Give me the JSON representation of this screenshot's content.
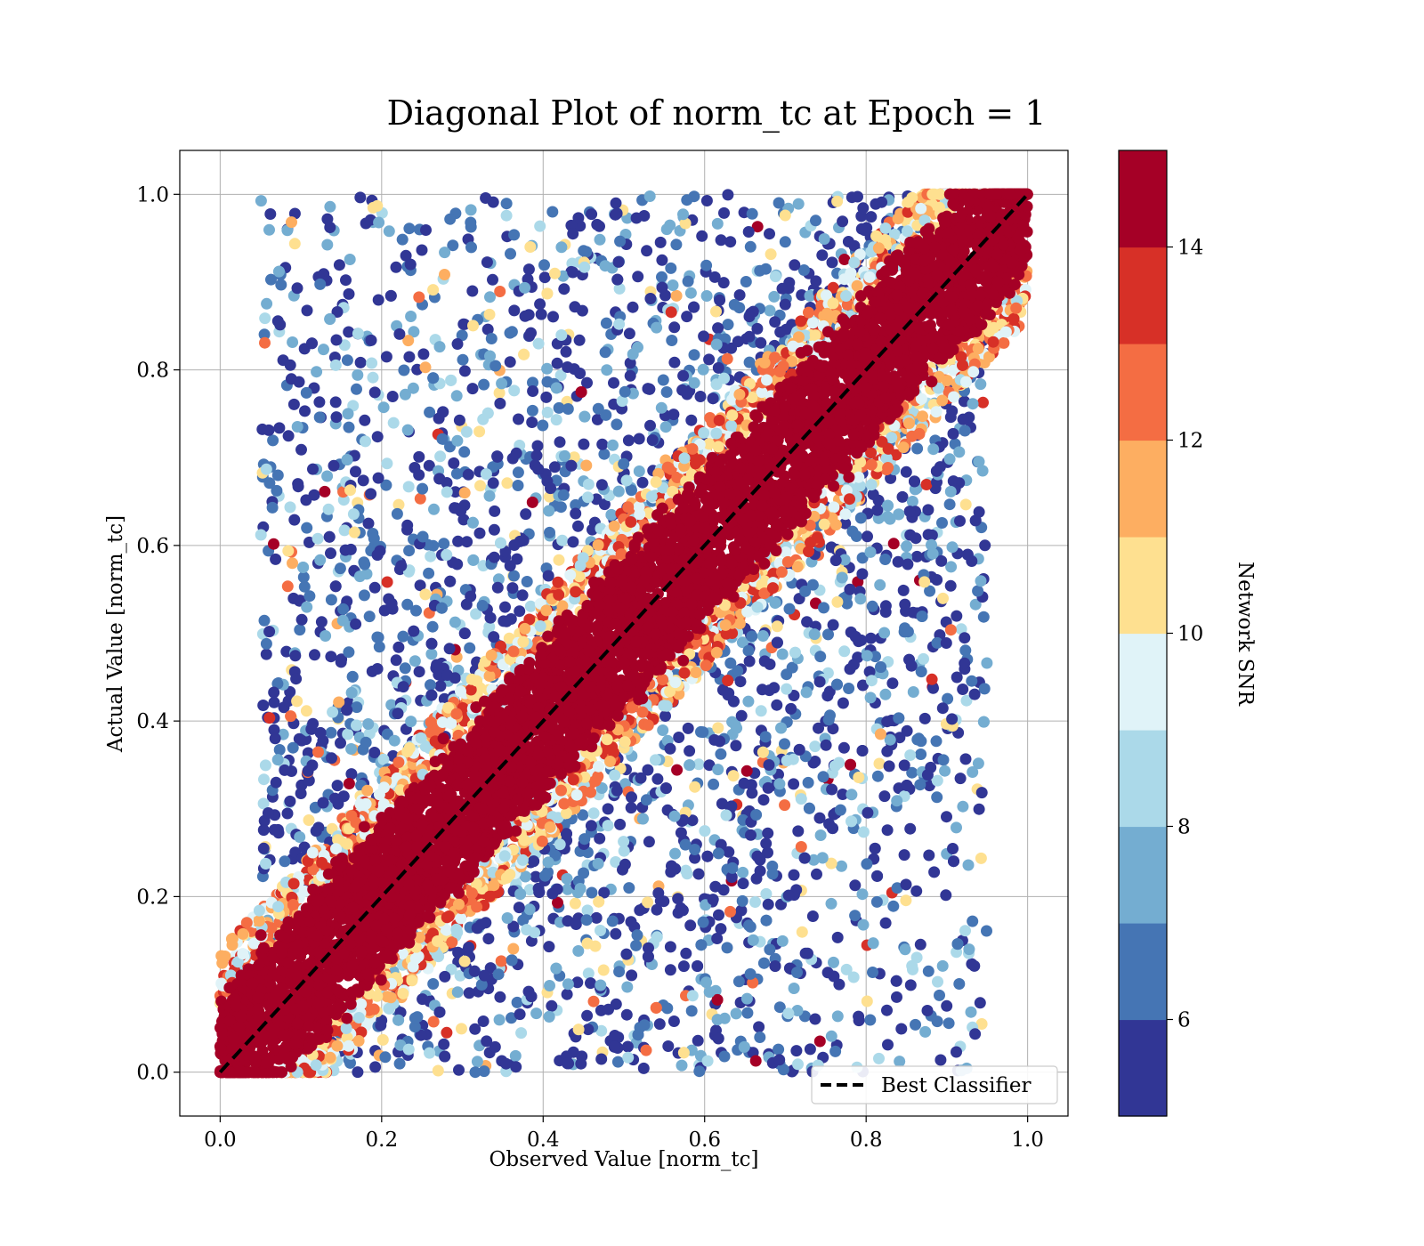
{
  "chart_data": {
    "type": "scatter",
    "title": "Diagonal Plot of norm_tc at Epoch = 1",
    "xlabel": "Observed Value [norm_tc]",
    "ylabel": "Actual Value [norm_tc]",
    "xlim": [
      -0.05,
      1.05
    ],
    "ylim": [
      -0.05,
      1.05
    ],
    "xticks": [
      "0.0",
      "0.2",
      "0.4",
      "0.6",
      "0.8",
      "1.0"
    ],
    "yticks": [
      "0.0",
      "0.2",
      "0.4",
      "0.6",
      "0.8",
      "1.0"
    ],
    "grid": true,
    "legend": {
      "placement": "lower-right",
      "entries": [
        "Best Classifier"
      ]
    },
    "series": [
      {
        "name": "Best Classifier",
        "type": "line",
        "style": "dashed",
        "color": "#000000",
        "x": [
          0,
          1
        ],
        "y": [
          0,
          1
        ]
      }
    ],
    "scatter_description": {
      "color_by": "Network SNR",
      "dense_band": "points concentrated along y = x with half-width about 0.1, mostly high SNR (>= 14)",
      "sparse_region": "low-SNR points spread across the upper-left and lower-right triangles, x in [0, 1], y in [0, 1]"
    },
    "colorbar": {
      "label": "Network SNR",
      "range": [
        5,
        15
      ],
      "boundaries": [
        5,
        6,
        7,
        8,
        9,
        10,
        11,
        12,
        13,
        14,
        15
      ],
      "ticks": [
        "6",
        "8",
        "10",
        "12",
        "14"
      ],
      "colors": [
        "#313695",
        "#4575b4",
        "#74add1",
        "#abd9e9",
        "#e0f3f8",
        "#fee090",
        "#fdae61",
        "#f46d43",
        "#d73027",
        "#a50026"
      ]
    }
  }
}
